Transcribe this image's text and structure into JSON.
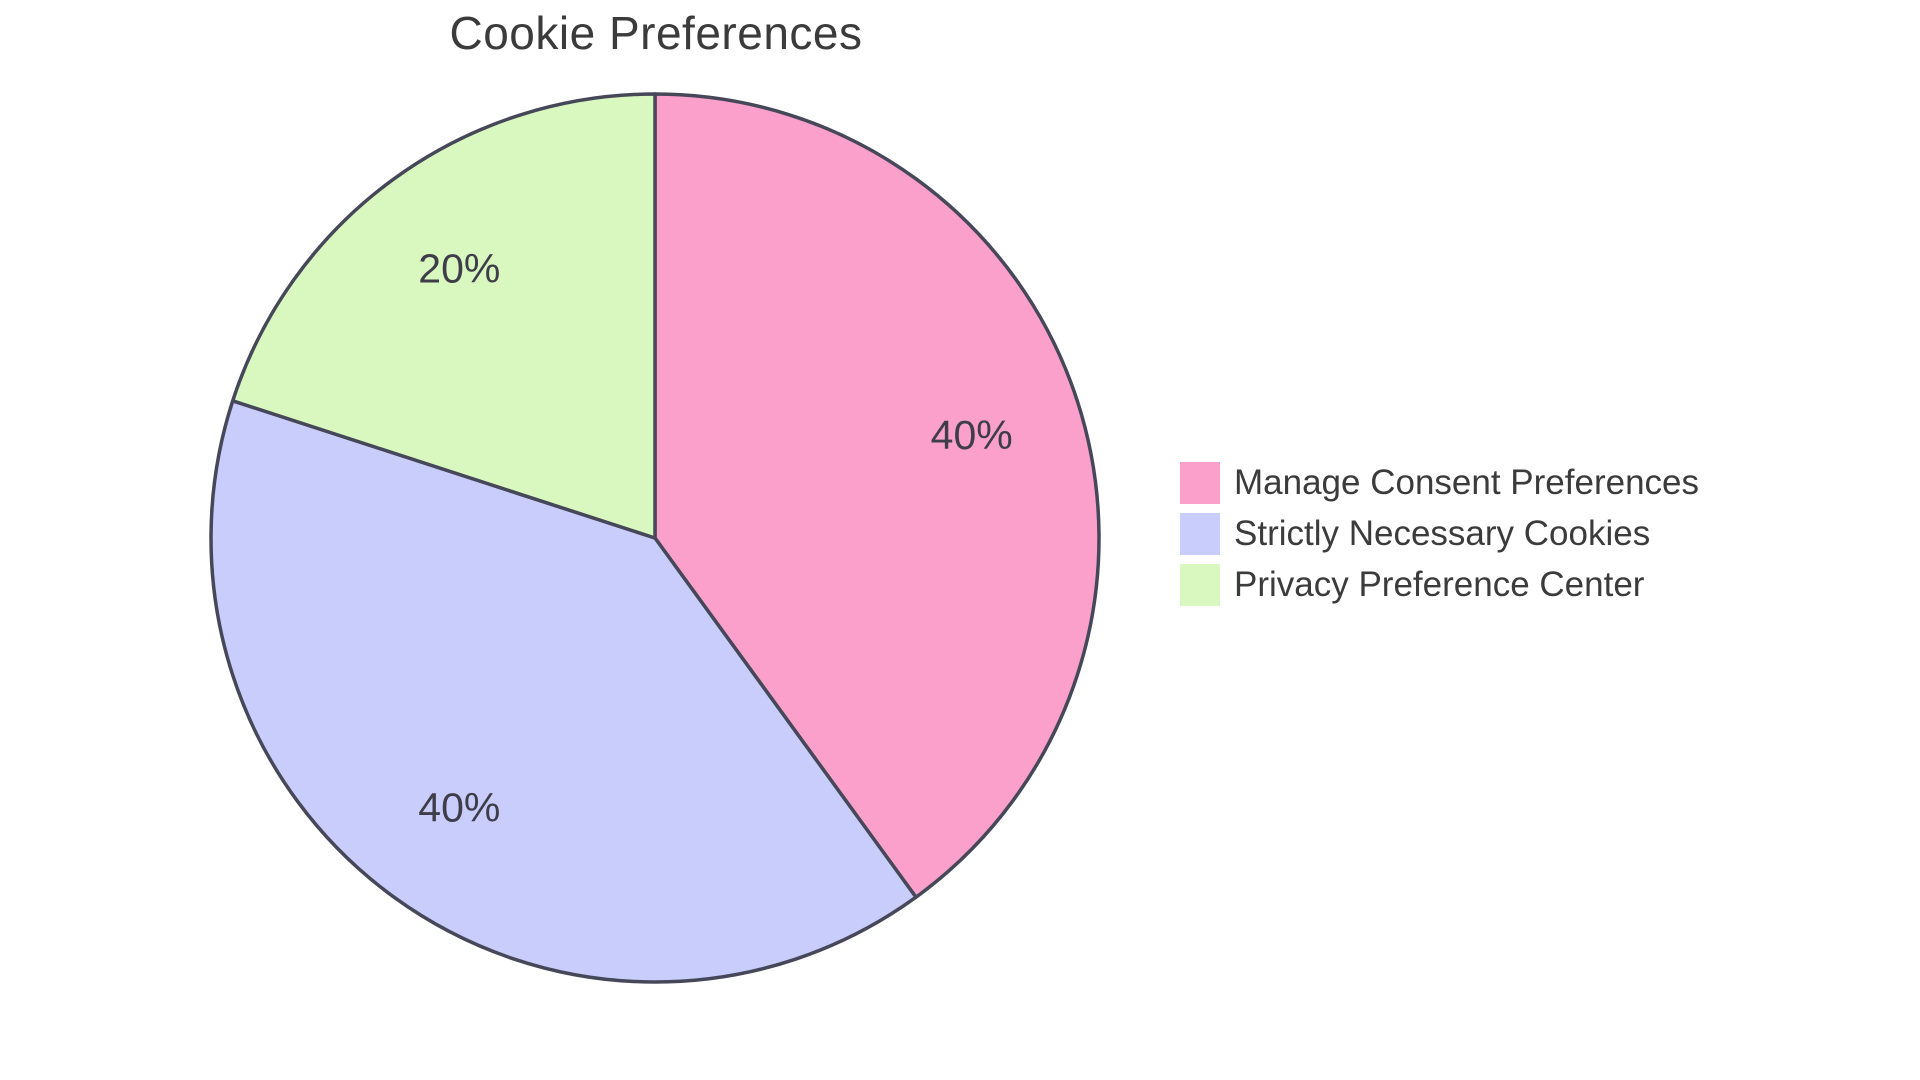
{
  "title": "Cookie Preferences",
  "chart_data": {
    "type": "pie",
    "title": "Cookie Preferences",
    "direction": "clockwise",
    "start_angle": "12-o'clock",
    "legend_position": "right-middle",
    "grid": false,
    "background": "#FFFFFF",
    "stroke_color": "#464859",
    "title_color": "#3B3B3B",
    "label_color": "#3F3D4A",
    "legend_text_color": "#3B3B3B",
    "segments": [
      {
        "label": "Manage Consent Preferences",
        "value": 40,
        "display": "40%",
        "color": "#FBA0CB"
      },
      {
        "label": "Strictly Necessary Cookies",
        "value": 40,
        "display": "40%",
        "color": "#C9CDFB"
      },
      {
        "label": "Privacy Preference Center",
        "value": 20,
        "display": "20%",
        "color": "#D8F8BF"
      }
    ]
  }
}
